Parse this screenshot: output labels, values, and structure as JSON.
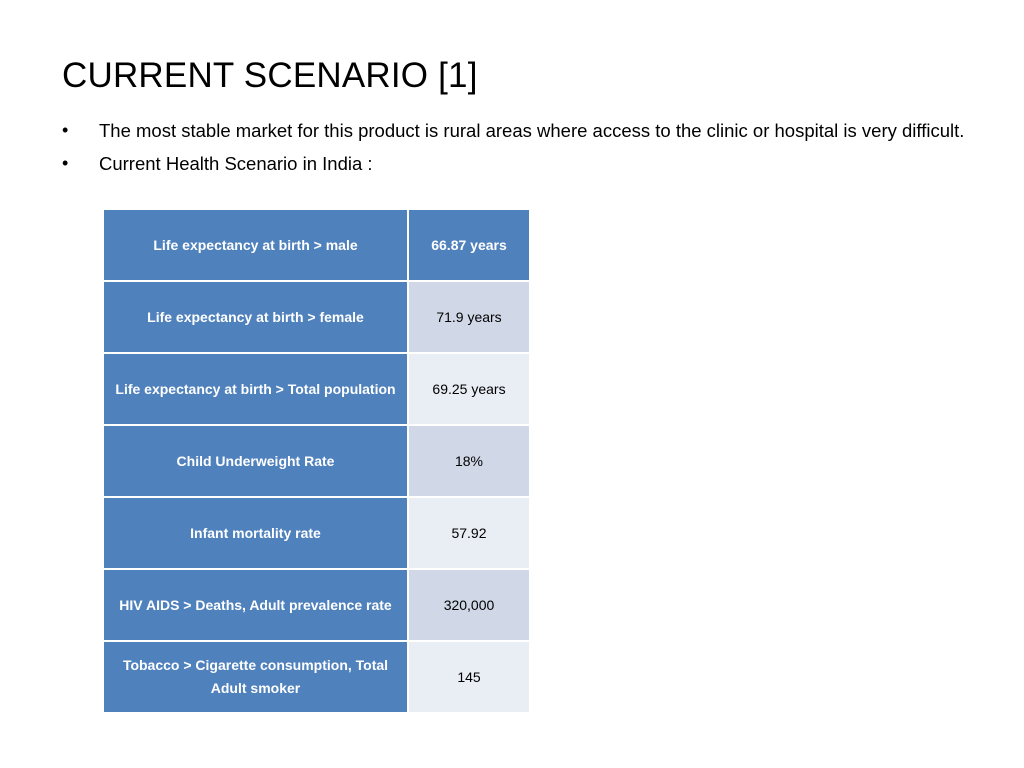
{
  "slide": {
    "title": "CURRENT SCENARIO [1]",
    "bullets": [
      "The most stable market for this product is rural areas where access to the clinic or hospital is very difficult.",
      "Current Health Scenario in India :"
    ]
  },
  "table": {
    "rows": [
      {
        "label": "Life expectancy at birth > male",
        "value": "66.87 years"
      },
      {
        "label": "Life expectancy at birth > female",
        "value": "71.9 years"
      },
      {
        "label": "Life expectancy at birth > Total population",
        "value": "69.25 years"
      },
      {
        "label": "Child Underweight Rate",
        "value": "18%"
      },
      {
        "label": "Infant mortality rate",
        "value": "57.92"
      },
      {
        "label": "HIV AIDS > Deaths, Adult prevalence rate",
        "value": "320,000"
      },
      {
        "label": "Tobacco > Cigarette consumption, Total Adult smoker",
        "value": "145"
      }
    ]
  },
  "colors": {
    "header_blue": "#4f81bd",
    "band_dark": "#d0d8e8",
    "band_light": "#e9edf4"
  }
}
